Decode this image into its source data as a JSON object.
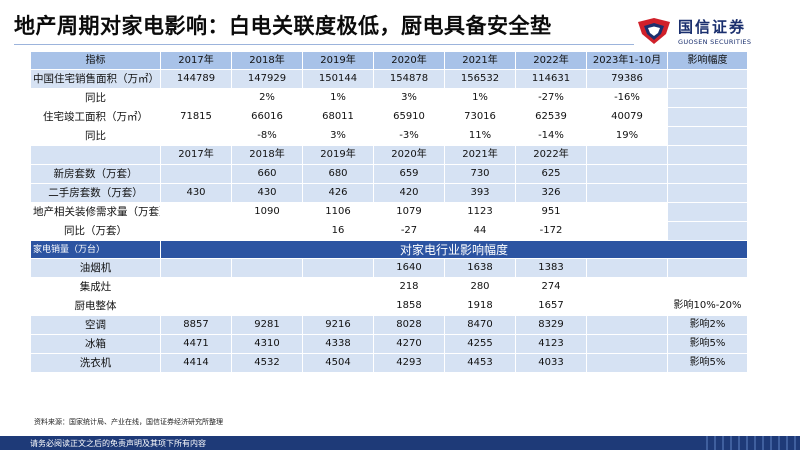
{
  "title": "地产周期对家电影响：白电关联度极低，厨电具备安全垫",
  "brand": {
    "name_cn": "国信证券",
    "name_en": "GUOSEN SECURITIES",
    "color_red": "#d0202a",
    "color_navy": "#1a2f6e"
  },
  "table": {
    "header": [
      "指标",
      "2017年",
      "2018年",
      "2019年",
      "2020年",
      "2021年",
      "2022年",
      "2023年1-10月",
      "影响幅度"
    ],
    "rows1": [
      [
        "中国住宅销售面积（万㎡）",
        "144789",
        "147929",
        "150144",
        "154878",
        "156532",
        "114631",
        "79386"
      ],
      [
        "同比",
        "",
        "2%",
        "1%",
        "3%",
        "1%",
        "-27%",
        "-16%"
      ],
      [
        "住宅竣工面积（万㎡）",
        "71815",
        "66016",
        "68011",
        "65910",
        "73016",
        "62539",
        "40079"
      ],
      [
        "同比",
        "",
        "-8%",
        "3%",
        "-3%",
        "11%",
        "-14%",
        "19%"
      ],
      [
        "",
        "2017年",
        "2018年",
        "2019年",
        "2020年",
        "2021年",
        "2022年",
        ""
      ],
      [
        "新房套数（万套）",
        "",
        "660",
        "680",
        "659",
        "730",
        "625",
        ""
      ],
      [
        "二手房套数（万套）",
        "430",
        "430",
        "426",
        "420",
        "393",
        "326",
        ""
      ],
      [
        "地产相关装修需求量（万套）",
        "",
        "1090",
        "1106",
        "1079",
        "1123",
        "951",
        ""
      ],
      [
        "同比（万套）",
        "",
        "",
        "16",
        "-27",
        "44",
        "-172",
        ""
      ]
    ],
    "section": {
      "left": "家电销量（万台）",
      "title": "对家电行业影响幅度"
    },
    "rows2": [
      [
        "油烟机",
        "",
        "",
        "",
        "1640",
        "1638",
        "1383",
        "",
        ""
      ],
      [
        "集成灶",
        "",
        "",
        "",
        "218",
        "280",
        "274",
        "",
        ""
      ],
      [
        "厨电整体",
        "",
        "",
        "",
        "1858",
        "1918",
        "1657",
        "",
        "影响10%-20%"
      ],
      [
        "空调",
        "8857",
        "9281",
        "9216",
        "8028",
        "8470",
        "8329",
        "",
        "影响2%"
      ],
      [
        "冰箱",
        "4471",
        "4310",
        "4338",
        "4270",
        "4255",
        "4123",
        "",
        "影响5%"
      ],
      [
        "洗衣机",
        "4414",
        "4532",
        "4504",
        "4293",
        "4453",
        "4033",
        "",
        "影响5%"
      ]
    ]
  },
  "source": "资料来源：国家统计局、产业在线，国信证券经济研究所整理",
  "footer": "请务必阅读正文之后的免责声明及其项下所有内容"
}
